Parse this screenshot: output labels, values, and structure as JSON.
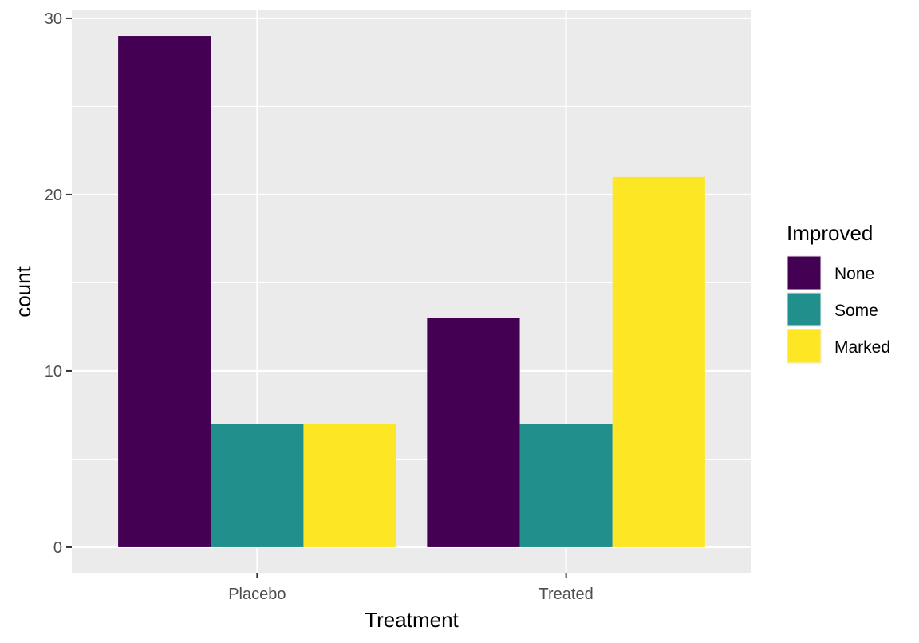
{
  "chart_data": {
    "type": "bar",
    "title": "",
    "xlabel": "Treatment",
    "ylabel": "count",
    "categories": [
      "Placebo",
      "Treated"
    ],
    "series": [
      {
        "name": "None",
        "values": [
          29,
          13
        ],
        "color": "#440154"
      },
      {
        "name": "Some",
        "values": [
          7,
          7
        ],
        "color": "#21908C"
      },
      {
        "name": "Marked",
        "values": [
          7,
          21
        ],
        "color": "#FDE725"
      }
    ],
    "ylim": [
      -1.45,
      30.45
    ],
    "yticks": [
      0,
      10,
      20,
      30
    ],
    "grid": true,
    "legend": {
      "title": "Improved",
      "position": "right"
    },
    "panel_background": "#EBEBEB",
    "grid_color": "#FFFFFF"
  }
}
